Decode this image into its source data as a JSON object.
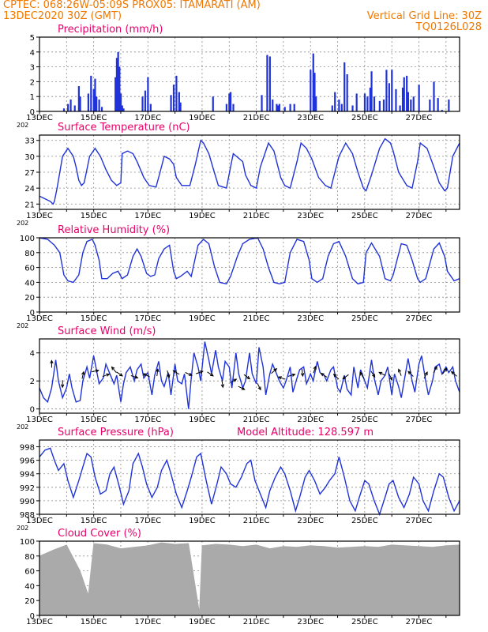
{
  "header": {
    "line1": "CPTEC:   068:26W-05:09S   PROX05: ITAMARATI (AM)",
    "line2": "13DEC2020 30Z (GMT)",
    "grid_line": "Vertical Grid Line: 30Z",
    "code": "TQ0126L028",
    "color": "#f07800"
  },
  "colors": {
    "title": "#e8006a",
    "line": "#2033d8",
    "bar": "#2033d8",
    "cloud": "#aaaaaa",
    "grid": "#8c8c8c"
  },
  "x_ticks": [
    "13DEC",
    "15DEC",
    "17DEC",
    "19DEC",
    "21DEC",
    "23DEC",
    "25DEC",
    "27DEC"
  ],
  "x_year_fragment": "202",
  "model_altitude": "Model Altitude: 128.597 m",
  "chart_data": [
    {
      "type": "bar",
      "title": "Precipitation (mm/h)",
      "x_range_days": [
        0,
        15.5
      ],
      "ylim": [
        0,
        5
      ],
      "yticks": [
        "0",
        "1",
        "2",
        "3",
        "4",
        "5"
      ],
      "x": [
        0.9,
        1.05,
        1.15,
        1.3,
        1.45,
        1.5,
        1.8,
        1.9,
        2.0,
        2.05,
        2.1,
        2.2,
        2.3,
        2.8,
        2.85,
        2.9,
        2.95,
        3.0,
        3.05,
        3.1,
        3.8,
        3.9,
        4.0,
        4.1,
        4.85,
        4.95,
        5.05,
        5.15,
        5.2,
        6.4,
        6.9,
        7.0,
        7.05,
        7.15,
        8.2,
        8.4,
        8.5,
        8.6,
        8.75,
        8.8,
        8.85,
        9.05,
        9.25,
        9.4,
        10.0,
        10.1,
        10.15,
        10.2,
        10.8,
        10.9,
        11.05,
        11.15,
        11.25,
        11.35,
        11.55,
        11.7,
        12.0,
        12.1,
        12.2,
        12.25,
        12.35,
        12.55,
        12.7,
        12.8,
        12.9,
        13.0,
        13.15,
        13.3,
        13.4,
        13.45,
        13.55,
        13.6,
        13.7,
        13.8,
        14.0,
        14.4,
        14.55,
        14.7,
        14.85,
        15.1
      ],
      "values": [
        0.2,
        0.5,
        0.8,
        0.4,
        1.7,
        1.0,
        1.2,
        2.4,
        1.5,
        2.2,
        1.0,
        0.8,
        0.3,
        2.3,
        3.6,
        4.0,
        3.0,
        1.2,
        0.4,
        0.2,
        1.0,
        1.4,
        2.3,
        0.5,
        1.1,
        1.8,
        2.4,
        1.3,
        0.6,
        1.0,
        0.5,
        1.2,
        1.3,
        0.5,
        1.1,
        3.8,
        3.7,
        0.8,
        0.5,
        0.4,
        0.5,
        0.3,
        0.5,
        0.5,
        2.8,
        3.9,
        2.6,
        1.0,
        0.4,
        1.3,
        0.8,
        0.5,
        3.3,
        2.5,
        0.4,
        1.2,
        1.2,
        1.0,
        1.6,
        2.7,
        1.0,
        0.7,
        0.8,
        2.8,
        1.9,
        2.8,
        1.5,
        0.4,
        1.6,
        2.3,
        2.4,
        1.3,
        0.8,
        1.0,
        1.8,
        0.8,
        2.0,
        0.9,
        0.1,
        0.8
      ]
    },
    {
      "type": "line",
      "title": "Surface Temperature (nC)",
      "x_range_days": [
        0,
        15.5
      ],
      "ylim": [
        20,
        34
      ],
      "yticks": [
        "21",
        "24",
        "27",
        "30",
        "33"
      ],
      "x": [
        0.0,
        0.2,
        0.4,
        0.5,
        0.55,
        0.65,
        0.85,
        1.05,
        1.25,
        1.35,
        1.45,
        1.55,
        1.65,
        1.85,
        2.05,
        2.25,
        2.45,
        2.65,
        2.85,
        3.0,
        3.05,
        3.25,
        3.45,
        3.6,
        3.85,
        4.05,
        4.3,
        4.45,
        4.6,
        4.8,
        4.95,
        5.05,
        5.25,
        5.55,
        5.75,
        5.95,
        6.05,
        6.25,
        6.45,
        6.6,
        6.9,
        7.05,
        7.15,
        7.5,
        7.6,
        7.8,
        8.0,
        8.15,
        8.45,
        8.65,
        8.9,
        9.05,
        9.25,
        9.5,
        9.65,
        9.85,
        10.05,
        10.3,
        10.55,
        10.75,
        10.95,
        11.05,
        11.3,
        11.55,
        11.75,
        11.95,
        12.05,
        12.25,
        12.55,
        12.75,
        12.95,
        13.05,
        13.25,
        13.55,
        13.75,
        13.95,
        14.05,
        14.3,
        14.55,
        14.75,
        14.95,
        15.05,
        15.25,
        15.5
      ],
      "values": [
        22.5,
        22.0,
        21.5,
        21.0,
        21.5,
        24.0,
        30.0,
        31.5,
        30.0,
        28.0,
        25.5,
        24.5,
        25.0,
        30.0,
        31.5,
        30.0,
        27.5,
        25.5,
        24.5,
        25.0,
        30.5,
        31.0,
        30.5,
        29.0,
        26.0,
        24.5,
        24.2,
        27.0,
        30.0,
        29.5,
        28.5,
        26.0,
        24.5,
        24.5,
        28.5,
        33.0,
        32.5,
        30.5,
        27.0,
        24.5,
        24.0,
        28.0,
        30.5,
        29.0,
        26.5,
        24.5,
        24.0,
        28.0,
        32.5,
        31.0,
        26.0,
        24.5,
        24.0,
        29.0,
        32.5,
        31.5,
        29.5,
        26.0,
        24.5,
        24.0,
        28.0,
        30.0,
        32.5,
        30.5,
        27.0,
        24.0,
        23.5,
        26.5,
        31.5,
        33.3,
        32.5,
        31.0,
        27.0,
        24.5,
        24.0,
        29.0,
        32.5,
        31.5,
        28.0,
        25.0,
        23.5,
        24.0,
        30.0,
        32.5
      ]
    },
    {
      "type": "line",
      "title": "Relative Humidity (%)",
      "x_range_days": [
        0,
        15.5
      ],
      "ylim": [
        0,
        100
      ],
      "yticks": [
        "0",
        "20",
        "40",
        "60",
        "80",
        "100"
      ],
      "x": [
        0.0,
        0.3,
        0.55,
        0.75,
        0.9,
        1.05,
        1.25,
        1.45,
        1.6,
        1.75,
        1.95,
        2.05,
        2.2,
        2.3,
        2.5,
        2.7,
        2.9,
        3.05,
        3.25,
        3.45,
        3.6,
        3.75,
        3.95,
        4.1,
        4.25,
        4.4,
        4.6,
        4.8,
        4.95,
        5.05,
        5.2,
        5.45,
        5.6,
        5.85,
        6.05,
        6.25,
        6.45,
        6.65,
        6.9,
        7.05,
        7.3,
        7.5,
        7.75,
        8.05,
        8.25,
        8.45,
        8.65,
        8.85,
        9.05,
        9.25,
        9.5,
        9.75,
        9.95,
        10.05,
        10.25,
        10.45,
        10.65,
        10.85,
        11.05,
        11.3,
        11.55,
        11.75,
        11.95,
        12.05,
        12.25,
        12.55,
        12.75,
        12.95,
        13.05,
        13.35,
        13.55,
        13.75,
        13.95,
        14.05,
        14.25,
        14.55,
        14.75,
        14.95,
        15.05,
        15.3,
        15.5
      ],
      "values": [
        100,
        98,
        90,
        80,
        50,
        42,
        40,
        50,
        80,
        95,
        98,
        90,
        70,
        45,
        45,
        52,
        55,
        45,
        50,
        75,
        85,
        75,
        52,
        48,
        50,
        72,
        85,
        90,
        55,
        45,
        48,
        55,
        48,
        90,
        98,
        92,
        62,
        40,
        38,
        48,
        75,
        92,
        98,
        100,
        85,
        60,
        40,
        38,
        40,
        80,
        98,
        95,
        70,
        45,
        40,
        45,
        75,
        92,
        95,
        75,
        45,
        38,
        40,
        80,
        93,
        75,
        45,
        42,
        50,
        92,
        90,
        70,
        45,
        40,
        45,
        85,
        93,
        75,
        55,
        42,
        45
      ]
    },
    {
      "type": "line",
      "title": "Surface Wind (m/s)",
      "x_range_days": [
        0,
        15.5
      ],
      "ylim": [
        -0.3,
        5
      ],
      "yticks": [
        "0",
        "2",
        "4"
      ],
      "x": [
        0.0,
        0.15,
        0.3,
        0.45,
        0.6,
        0.7,
        0.85,
        1.0,
        1.1,
        1.2,
        1.35,
        1.5,
        1.6,
        1.75,
        1.85,
        2.0,
        2.1,
        2.2,
        2.35,
        2.45,
        2.6,
        2.75,
        2.85,
        3.0,
        3.1,
        3.2,
        3.35,
        3.5,
        3.6,
        3.75,
        3.85,
        4.0,
        4.15,
        4.25,
        4.4,
        4.5,
        4.6,
        4.75,
        4.85,
        5.0,
        5.1,
        5.25,
        5.35,
        5.5,
        5.6,
        5.7,
        5.85,
        5.95,
        6.1,
        6.25,
        6.35,
        6.5,
        6.6,
        6.75,
        6.85,
        7.0,
        7.1,
        7.25,
        7.35,
        7.5,
        7.6,
        7.75,
        7.85,
        8.0,
        8.1,
        8.25,
        8.35,
        8.5,
        8.6,
        8.75,
        8.85,
        9.0,
        9.1,
        9.25,
        9.35,
        9.5,
        9.6,
        9.75,
        9.85,
        10.0,
        10.1,
        10.25,
        10.35,
        10.5,
        10.6,
        10.75,
        10.85,
        11.0,
        11.1,
        11.25,
        11.35,
        11.5,
        11.6,
        11.75,
        11.85,
        12.0,
        12.1,
        12.25,
        12.35,
        12.5,
        12.6,
        12.75,
        12.85,
        13.0,
        13.1,
        13.25,
        13.35,
        13.5,
        13.6,
        13.75,
        13.85,
        14.0,
        14.1,
        14.25,
        14.35,
        14.5,
        14.6,
        14.75,
        14.85,
        15.0,
        15.1,
        15.25,
        15.35,
        15.5
      ],
      "values": [
        1.5,
        0.8,
        0.5,
        1.5,
        3.5,
        2.0,
        0.8,
        1.5,
        2.5,
        1.5,
        0.5,
        0.6,
        2.0,
        3.0,
        2.2,
        3.8,
        2.8,
        1.8,
        2.2,
        3.2,
        2.5,
        1.8,
        2.4,
        0.5,
        1.8,
        2.6,
        3.0,
        2.0,
        2.8,
        3.2,
        2.2,
        2.6,
        1.0,
        2.4,
        3.4,
        2.0,
        1.6,
        2.6,
        1.0,
        3.2,
        2.0,
        1.8,
        2.5,
        0.0,
        2.2,
        4.0,
        3.0,
        2.0,
        4.8,
        3.5,
        2.5,
        4.2,
        3.0,
        2.0,
        3.4,
        3.0,
        1.5,
        4.0,
        2.5,
        1.5,
        2.0,
        4.0,
        2.5,
        1.8,
        4.4,
        3.0,
        1.0,
        2.5,
        3.2,
        2.5,
        2.0,
        1.5,
        2.0,
        3.0,
        1.2,
        2.2,
        2.8,
        3.0,
        1.8,
        2.5,
        2.0,
        3.4,
        2.6,
        2.4,
        2.0,
        2.8,
        3.0,
        1.5,
        1.2,
        2.4,
        1.4,
        1.0,
        3.0,
        1.5,
        2.8,
        2.0,
        1.5,
        3.5,
        2.2,
        1.0,
        2.0,
        2.4,
        3.0,
        1.0,
        2.5,
        1.6,
        0.8,
        2.5,
        3.6,
        2.0,
        1.2,
        3.2,
        3.8,
        2.0,
        1.0,
        2.0,
        3.0,
        3.2,
        2.5,
        3.0,
        2.6,
        3.0,
        2.0,
        1.2
      ],
      "vectors": [
        {
          "x": 0.45,
          "y": 3.2,
          "u": 0,
          "v": 1
        },
        {
          "x": 0.85,
          "y": 1.8,
          "u": 0,
          "v": -1
        },
        {
          "x": 1.6,
          "y": 2.4,
          "u": 0.2,
          "v": 0.9
        },
        {
          "x": 2.05,
          "y": 2.7,
          "u": 0.9,
          "v": 0.2
        },
        {
          "x": 2.45,
          "y": 2.4,
          "u": 0.8,
          "v": 0.3
        },
        {
          "x": 2.75,
          "y": 2.8,
          "u": -0.4,
          "v": 0.5
        },
        {
          "x": 2.95,
          "y": 2.5,
          "u": 0.9,
          "v": -0.6
        },
        {
          "x": 3.5,
          "y": 2.3,
          "u": 0.9,
          "v": -0.3
        },
        {
          "x": 3.95,
          "y": 2.4,
          "u": -0.4,
          "v": 0.2
        },
        {
          "x": 4.35,
          "y": 2.6,
          "u": 0.1,
          "v": 0.8
        },
        {
          "x": 4.75,
          "y": 2.5,
          "u": 0.2,
          "v": -0.7
        },
        {
          "x": 5.05,
          "y": 2.6,
          "u": -0.5,
          "v": 0.3
        },
        {
          "x": 5.5,
          "y": 2.5,
          "u": 0.9,
          "v": -0.4
        },
        {
          "x": 5.9,
          "y": 2.6,
          "u": 0.9,
          "v": 0.3
        },
        {
          "x": 6.3,
          "y": 2.5,
          "u": 0.6,
          "v": -0.4
        },
        {
          "x": 6.75,
          "y": 1.8,
          "u": 0.1,
          "v": -0.7
        },
        {
          "x": 7.15,
          "y": 2.0,
          "u": 0.9,
          "v": 0.5
        },
        {
          "x": 7.45,
          "y": 1.5,
          "u": 0.8,
          "v": -0.4
        },
        {
          "x": 7.65,
          "y": 2.3,
          "u": 0.8,
          "v": -0.6
        },
        {
          "x": 8.1,
          "y": 1.6,
          "u": 0.3,
          "v": -0.6
        },
        {
          "x": 8.65,
          "y": 2.7,
          "u": 0.9,
          "v": 0.8
        },
        {
          "x": 8.95,
          "y": 2.2,
          "u": -0.6,
          "v": 0.2
        },
        {
          "x": 9.3,
          "y": 2.4,
          "u": 0.7,
          "v": 0.2
        },
        {
          "x": 9.7,
          "y": 2.6,
          "u": 0.1,
          "v": -0.8
        },
        {
          "x": 10.15,
          "y": 2.8,
          "u": 0.3,
          "v": 0.9
        },
        {
          "x": 10.5,
          "y": 2.4,
          "u": -0.8,
          "v": 0.5
        },
        {
          "x": 10.95,
          "y": 2.3,
          "u": -0.5,
          "v": 0.5
        },
        {
          "x": 11.3,
          "y": 2.3,
          "u": -0.4,
          "v": -0.3
        },
        {
          "x": 11.9,
          "y": 2.4,
          "u": -0.3,
          "v": 0.5
        },
        {
          "x": 12.3,
          "y": 2.5,
          "u": 0.2,
          "v": -0.3
        },
        {
          "x": 12.65,
          "y": 2.5,
          "u": -0.6,
          "v": 0.3
        },
        {
          "x": 12.95,
          "y": 2.3,
          "u": 0.4,
          "v": -0.8
        },
        {
          "x": 13.3,
          "y": 2.6,
          "u": -0.2,
          "v": 0.5
        },
        {
          "x": 13.7,
          "y": 2.5,
          "u": -0.3,
          "v": 0.3
        },
        {
          "x": 14.25,
          "y": 2.4,
          "u": 0.3,
          "v": 0.6
        },
        {
          "x": 14.6,
          "y": 2.8,
          "u": 0.3,
          "v": 0.6
        },
        {
          "x": 14.95,
          "y": 2.7,
          "u": 0.3,
          "v": 0.4
        },
        {
          "x": 15.3,
          "y": 2.5,
          "u": -0.6,
          "v": 0.5
        }
      ]
    },
    {
      "type": "line",
      "title": "Surface Pressure (hPa)",
      "x_range_days": [
        0,
        15.5
      ],
      "ylim": [
        988,
        999
      ],
      "yticks": [
        "988",
        "990",
        "992",
        "994",
        "996",
        "998"
      ],
      "x": [
        0.0,
        0.2,
        0.4,
        0.55,
        0.7,
        0.9,
        1.05,
        1.25,
        1.45,
        1.6,
        1.75,
        1.9,
        2.05,
        2.25,
        2.45,
        2.6,
        2.75,
        2.95,
        3.1,
        3.3,
        3.45,
        3.65,
        3.8,
        3.95,
        4.15,
        4.35,
        4.5,
        4.7,
        4.85,
        5.05,
        5.25,
        5.45,
        5.6,
        5.8,
        5.95,
        6.15,
        6.35,
        6.55,
        6.7,
        6.9,
        7.05,
        7.25,
        7.45,
        7.65,
        7.8,
        7.95,
        8.15,
        8.35,
        8.5,
        8.7,
        8.9,
        9.05,
        9.25,
        9.45,
        9.6,
        9.8,
        9.95,
        10.15,
        10.35,
        10.55,
        10.7,
        10.9,
        11.05,
        11.25,
        11.45,
        11.65,
        11.8,
        12.0,
        12.15,
        12.35,
        12.55,
        12.75,
        12.9,
        13.05,
        13.25,
        13.45,
        13.65,
        13.8,
        14.0,
        14.15,
        14.35,
        14.55,
        14.75,
        14.9,
        15.1,
        15.3,
        15.5
      ],
      "values": [
        996.5,
        997.5,
        997.8,
        996.0,
        994.5,
        995.5,
        993.0,
        990.5,
        993.0,
        995.0,
        997.0,
        996.5,
        993.5,
        991.0,
        991.5,
        994.0,
        995.0,
        992.0,
        989.5,
        991.5,
        995.5,
        997.0,
        995.0,
        992.5,
        990.5,
        992.0,
        994.5,
        996.0,
        994.0,
        991.0,
        989.0,
        991.5,
        993.5,
        996.5,
        997.0,
        993.0,
        989.5,
        992.5,
        995.0,
        994.0,
        992.5,
        992.0,
        993.5,
        995.5,
        996.0,
        993.0,
        991.0,
        989.0,
        991.5,
        993.5,
        995.0,
        994.0,
        991.5,
        988.5,
        990.5,
        993.5,
        994.5,
        993.0,
        991.0,
        992.0,
        993.0,
        994.0,
        996.5,
        993.5,
        990.0,
        988.5,
        990.5,
        993.0,
        992.5,
        990.0,
        988.0,
        990.5,
        992.5,
        993.0,
        990.5,
        989.0,
        991.0,
        993.5,
        992.5,
        990.0,
        988.5,
        991.5,
        994.0,
        993.5,
        990.5,
        988.5,
        990.0
      ]
    },
    {
      "type": "bar",
      "title": "Cloud Cover (%)",
      "x_range_days": [
        0,
        15.5
      ],
      "ylim": [
        0,
        100
      ],
      "yticks": [
        "0",
        "20",
        "40",
        "60",
        "80",
        "100"
      ],
      "x": [
        0.0,
        0.5,
        1.0,
        1.5,
        1.8,
        2.0,
        2.5,
        3.0,
        3.5,
        4.0,
        4.5,
        5.0,
        5.5,
        5.9,
        6.0,
        6.5,
        7.0,
        7.5,
        8.0,
        8.5,
        9.0,
        9.5,
        10.0,
        10.5,
        11.0,
        11.5,
        12.0,
        12.5,
        13.0,
        13.5,
        14.0,
        14.5,
        15.0,
        15.5
      ],
      "values": [
        80,
        88,
        95,
        60,
        28,
        97,
        95,
        90,
        92,
        94,
        98,
        96,
        97,
        5,
        94,
        96,
        95,
        93,
        95,
        90,
        93,
        92,
        94,
        93,
        91,
        92,
        93,
        92,
        95,
        94,
        93,
        92,
        94,
        95
      ]
    }
  ]
}
